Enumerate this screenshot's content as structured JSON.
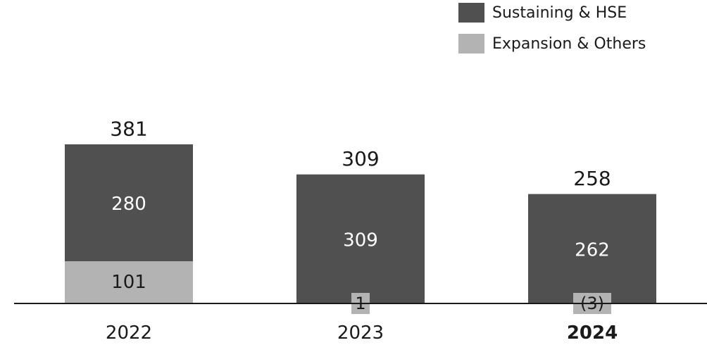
{
  "chart_data": {
    "type": "bar",
    "stacked": true,
    "categories": [
      "2022",
      "2023",
      "2024"
    ],
    "bold_category": "2024",
    "totals": [
      381,
      309,
      258
    ],
    "series": [
      {
        "name": "Sustaining & HSE",
        "values": [
          280,
          309,
          262
        ],
        "labels": [
          "280",
          "309",
          "262"
        ],
        "color": "#505050"
      },
      {
        "name": "Expansion & Others",
        "values": [
          101,
          1,
          -3
        ],
        "labels": [
          "101",
          "1",
          "(3)"
        ],
        "color": "#b3b3b3"
      }
    ],
    "legend_position": "top-right",
    "ylim": [
      0,
      381
    ],
    "grid": false
  }
}
